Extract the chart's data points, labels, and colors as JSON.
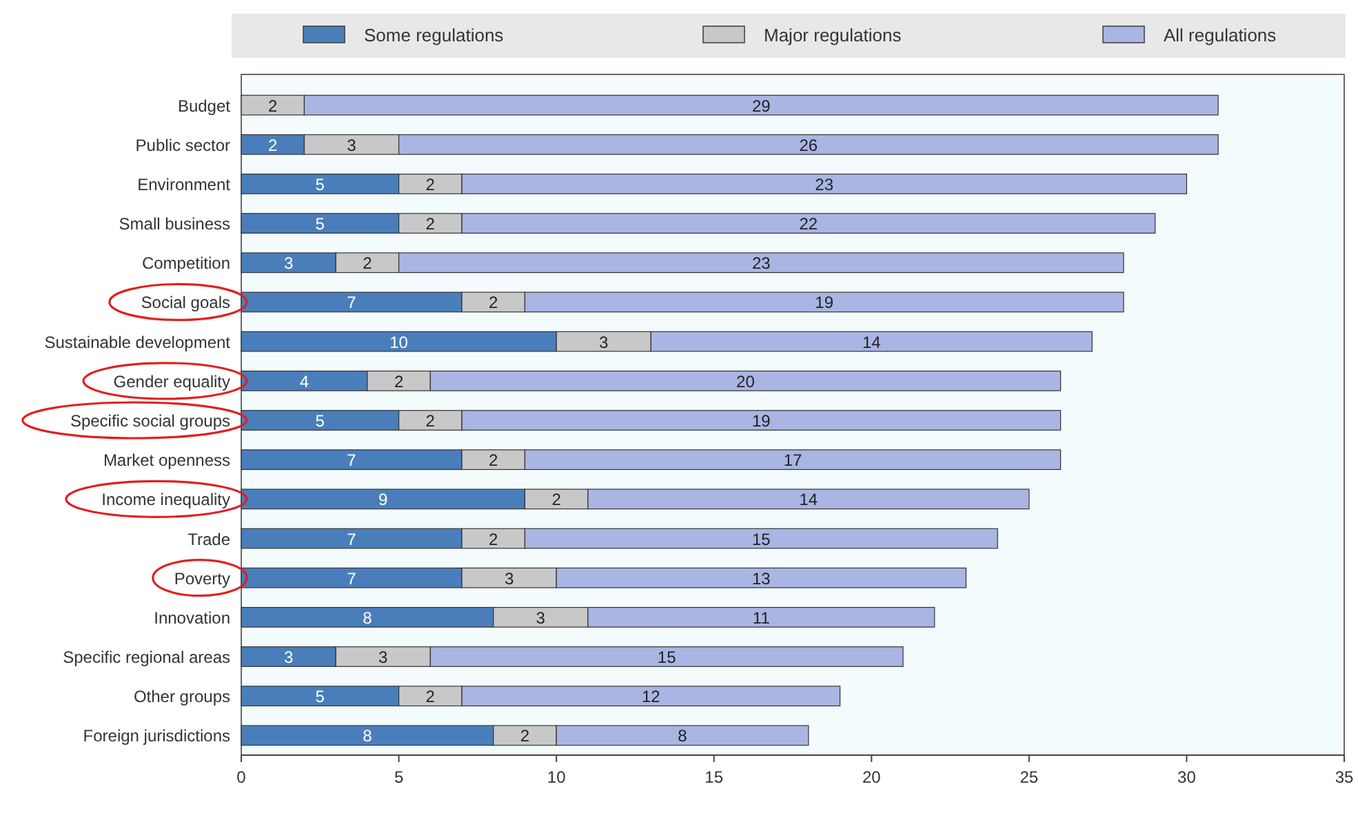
{
  "chart_data": {
    "type": "bar",
    "orientation": "horizontal",
    "stacked": true,
    "legend": "top",
    "categories": [
      "Budget",
      "Public sector",
      "Environment",
      "Small business",
      "Competition",
      "Social goals",
      "Sustainable development",
      "Gender equality",
      "Specific social groups",
      "Market openness",
      "Income inequality",
      "Trade",
      "Poverty",
      "Innovation",
      "Specific regional areas",
      "Other groups",
      "Foreign jurisdictions"
    ],
    "series": [
      {
        "name": "Some regulations",
        "color": "#4a7ebb",
        "values": [
          0,
          2,
          5,
          5,
          3,
          7,
          10,
          4,
          5,
          7,
          9,
          7,
          7,
          8,
          3,
          5,
          8
        ],
        "value_labels": [
          null,
          "2",
          "5",
          "5",
          "3",
          "7",
          "10",
          "4",
          "5",
          "7",
          "9",
          "7",
          "7",
          "8",
          "3",
          "5",
          "8"
        ]
      },
      {
        "name": "Major regulations",
        "color": "#c8c8c8",
        "values": [
          2,
          3,
          2,
          2,
          2,
          2,
          3,
          2,
          2,
          2,
          2,
          2,
          3,
          3,
          3,
          2,
          2
        ],
        "value_labels": [
          "2",
          "3",
          "2",
          "2",
          "2",
          "2",
          "3",
          "2",
          "2",
          "2",
          "2",
          "2",
          "3",
          "3",
          "3",
          "2",
          "2"
        ]
      },
      {
        "name": "All regulations",
        "color": "#a9b5e3",
        "values": [
          29,
          26,
          23,
          22,
          23,
          19,
          14,
          20,
          19,
          17,
          14,
          15,
          13,
          11,
          15,
          12,
          8
        ],
        "value_labels": [
          "29",
          "26",
          "23",
          "22",
          "23",
          "19",
          "14",
          "20",
          "19",
          "17",
          "14",
          "15",
          "13",
          "11",
          "15",
          "12",
          "8"
        ]
      }
    ],
    "xlim": [
      0,
      35
    ],
    "xticks": [
      0,
      5,
      10,
      15,
      20,
      25,
      30,
      35
    ],
    "grid": false
  }
}
